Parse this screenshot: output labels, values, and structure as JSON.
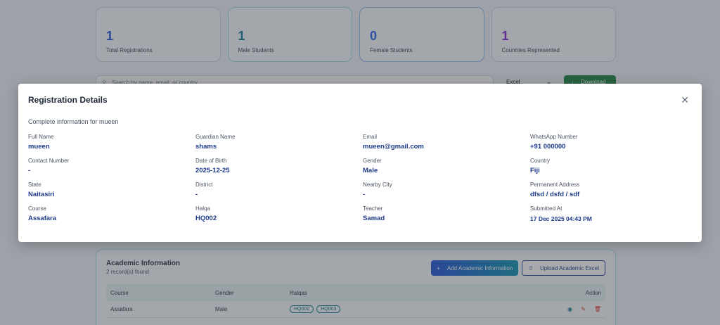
{
  "stats": [
    {
      "value": "1",
      "label": "Total Registrations",
      "color": "#1d4ed8"
    },
    {
      "value": "1",
      "label": "Male Students",
      "color": "#0e7490"
    },
    {
      "value": "0",
      "label": "Female Students",
      "color": "#2563eb"
    },
    {
      "value": "1",
      "label": "Countries Represented",
      "color": "#7e22ce"
    }
  ],
  "toolbar": {
    "search_placeholder": "Search by name, email, or country...",
    "format_selected": "Excel",
    "download_label": "Download"
  },
  "academic": {
    "title": "Academic Information",
    "subtitle": "2 record(s) found",
    "add_button": "Add Academic Information",
    "upload_button": "Upload Academic Excel",
    "columns": [
      "Course",
      "Gender",
      "Halqas",
      "Action"
    ],
    "rows": [
      {
        "course": "Assafara",
        "gender": "Male",
        "halqas": [
          "HQ002",
          "HQ003"
        ]
      }
    ]
  },
  "modal": {
    "title": "Registration Details",
    "description": "Complete information for mueen",
    "fields": [
      {
        "label": "Full Name",
        "value": "mueen"
      },
      {
        "label": "Guardian Name",
        "value": "shams"
      },
      {
        "label": "Email",
        "value": "mueen@gmail.com"
      },
      {
        "label": "WhatsApp Number",
        "value": "+91 000000"
      },
      {
        "label": "Contact Number",
        "value": "-"
      },
      {
        "label": "Date of Birth",
        "value": "2025-12-25"
      },
      {
        "label": "Gender",
        "value": "Male"
      },
      {
        "label": "Country",
        "value": "Fiji"
      },
      {
        "label": "State",
        "value": "Naitasiri"
      },
      {
        "label": "District",
        "value": "-"
      },
      {
        "label": "Nearby City",
        "value": "-"
      },
      {
        "label": "Permanent Address",
        "value": "dfsd / dsfd / sdf"
      },
      {
        "label": "Course",
        "value": "Assafara"
      },
      {
        "label": "Halqa",
        "value": "HQ002"
      },
      {
        "label": "Teacher",
        "value": "Samad"
      },
      {
        "label": "Submitted At",
        "value": "17 Dec 2025 04:43 PM"
      }
    ]
  }
}
